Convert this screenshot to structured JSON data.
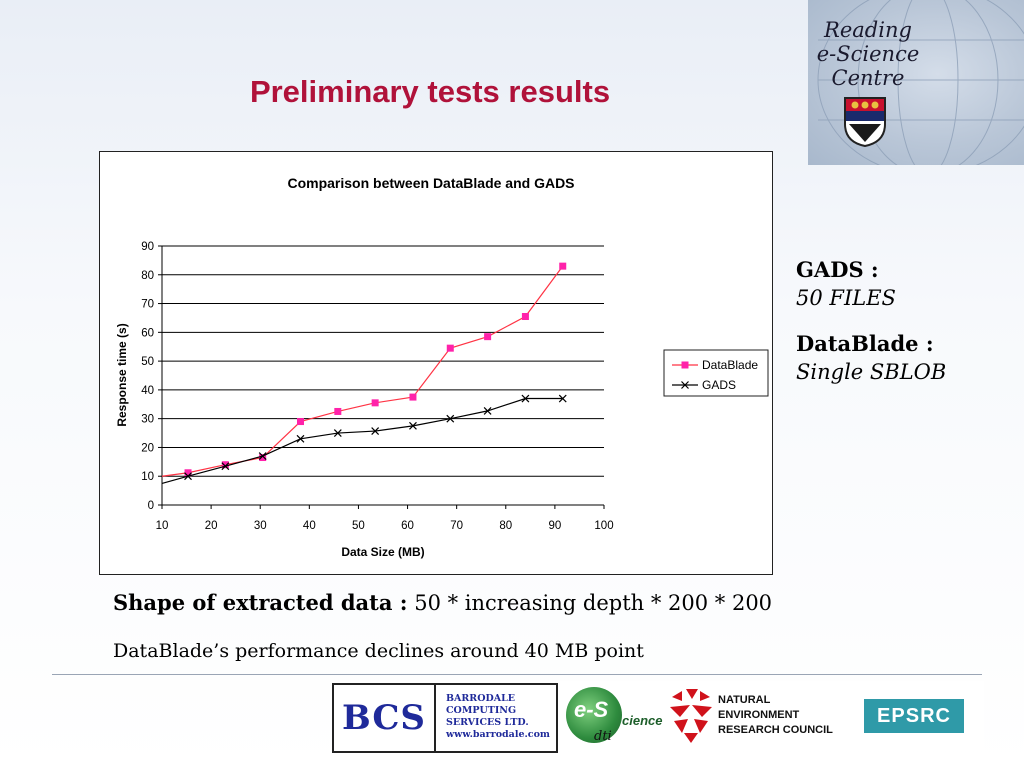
{
  "slide": {
    "title": "Preliminary tests results",
    "header_logo": {
      "lines": [
        "Reading",
        "e-Science",
        "Centre"
      ]
    }
  },
  "notes": [
    {
      "head": "GADS :",
      "body": "50 FILES"
    },
    {
      "head": "DataBlade :",
      "body": "Single SBLOB"
    }
  ],
  "shape": {
    "label": "Shape of extracted data :",
    "value": "50 * increasing depth * 200 * 200"
  },
  "decline_text": "DataBlade’s performance declines around 40 MB point",
  "footer_logos": {
    "bcs_letters": "BCS",
    "bcs_company": [
      "BARRODALE",
      "COMPUTING",
      "SERVICES LTD.",
      "www.barrodale.com"
    ],
    "escience": {
      "mark": "e-S",
      "word": "cience",
      "sub": "dti"
    },
    "nerc": [
      "NATURAL",
      "ENVIRONMENT",
      "RESEARCH COUNCIL"
    ],
    "epsrc": "EPSRC"
  },
  "chart_data": {
    "type": "line",
    "title": "Comparison between DataBlade and GADS",
    "xlabel": "Data Size (MB)",
    "ylabel": "Response time (s)",
    "xlim": [
      10,
      100
    ],
    "ylim": [
      0,
      90
    ],
    "xticks": [
      10,
      20,
      30,
      40,
      50,
      60,
      70,
      80,
      90,
      100
    ],
    "yticks": [
      0,
      10,
      20,
      30,
      40,
      50,
      60,
      70,
      80,
      90
    ],
    "grid": "horizontal",
    "legend_position": "right",
    "series": [
      {
        "name": "DataBlade",
        "color": "#ff3344",
        "marker": "square",
        "marker_color": "#ff22aa",
        "points": [
          [
            10,
            10
          ],
          [
            15.3,
            11.2
          ],
          [
            22.9,
            14
          ],
          [
            30.5,
            16.5
          ],
          [
            38.2,
            29
          ],
          [
            45.8,
            32.5
          ],
          [
            53.4,
            35.5
          ],
          [
            61.1,
            37.5
          ],
          [
            68.7,
            54.5
          ],
          [
            76.3,
            58.5
          ],
          [
            84,
            65.5
          ],
          [
            91.6,
            83
          ]
        ]
      },
      {
        "name": "GADS",
        "color": "#000000",
        "marker": "x",
        "marker_color": "#000000",
        "points": [
          [
            10,
            7.5
          ],
          [
            15.3,
            10
          ],
          [
            22.9,
            13.5
          ],
          [
            30.5,
            17
          ],
          [
            38.2,
            23
          ],
          [
            45.8,
            25
          ],
          [
            53.4,
            25.7
          ],
          [
            61.1,
            27.5
          ],
          [
            68.7,
            30
          ],
          [
            76.3,
            32.7
          ],
          [
            84,
            37
          ],
          [
            91.6,
            37
          ]
        ]
      }
    ]
  }
}
